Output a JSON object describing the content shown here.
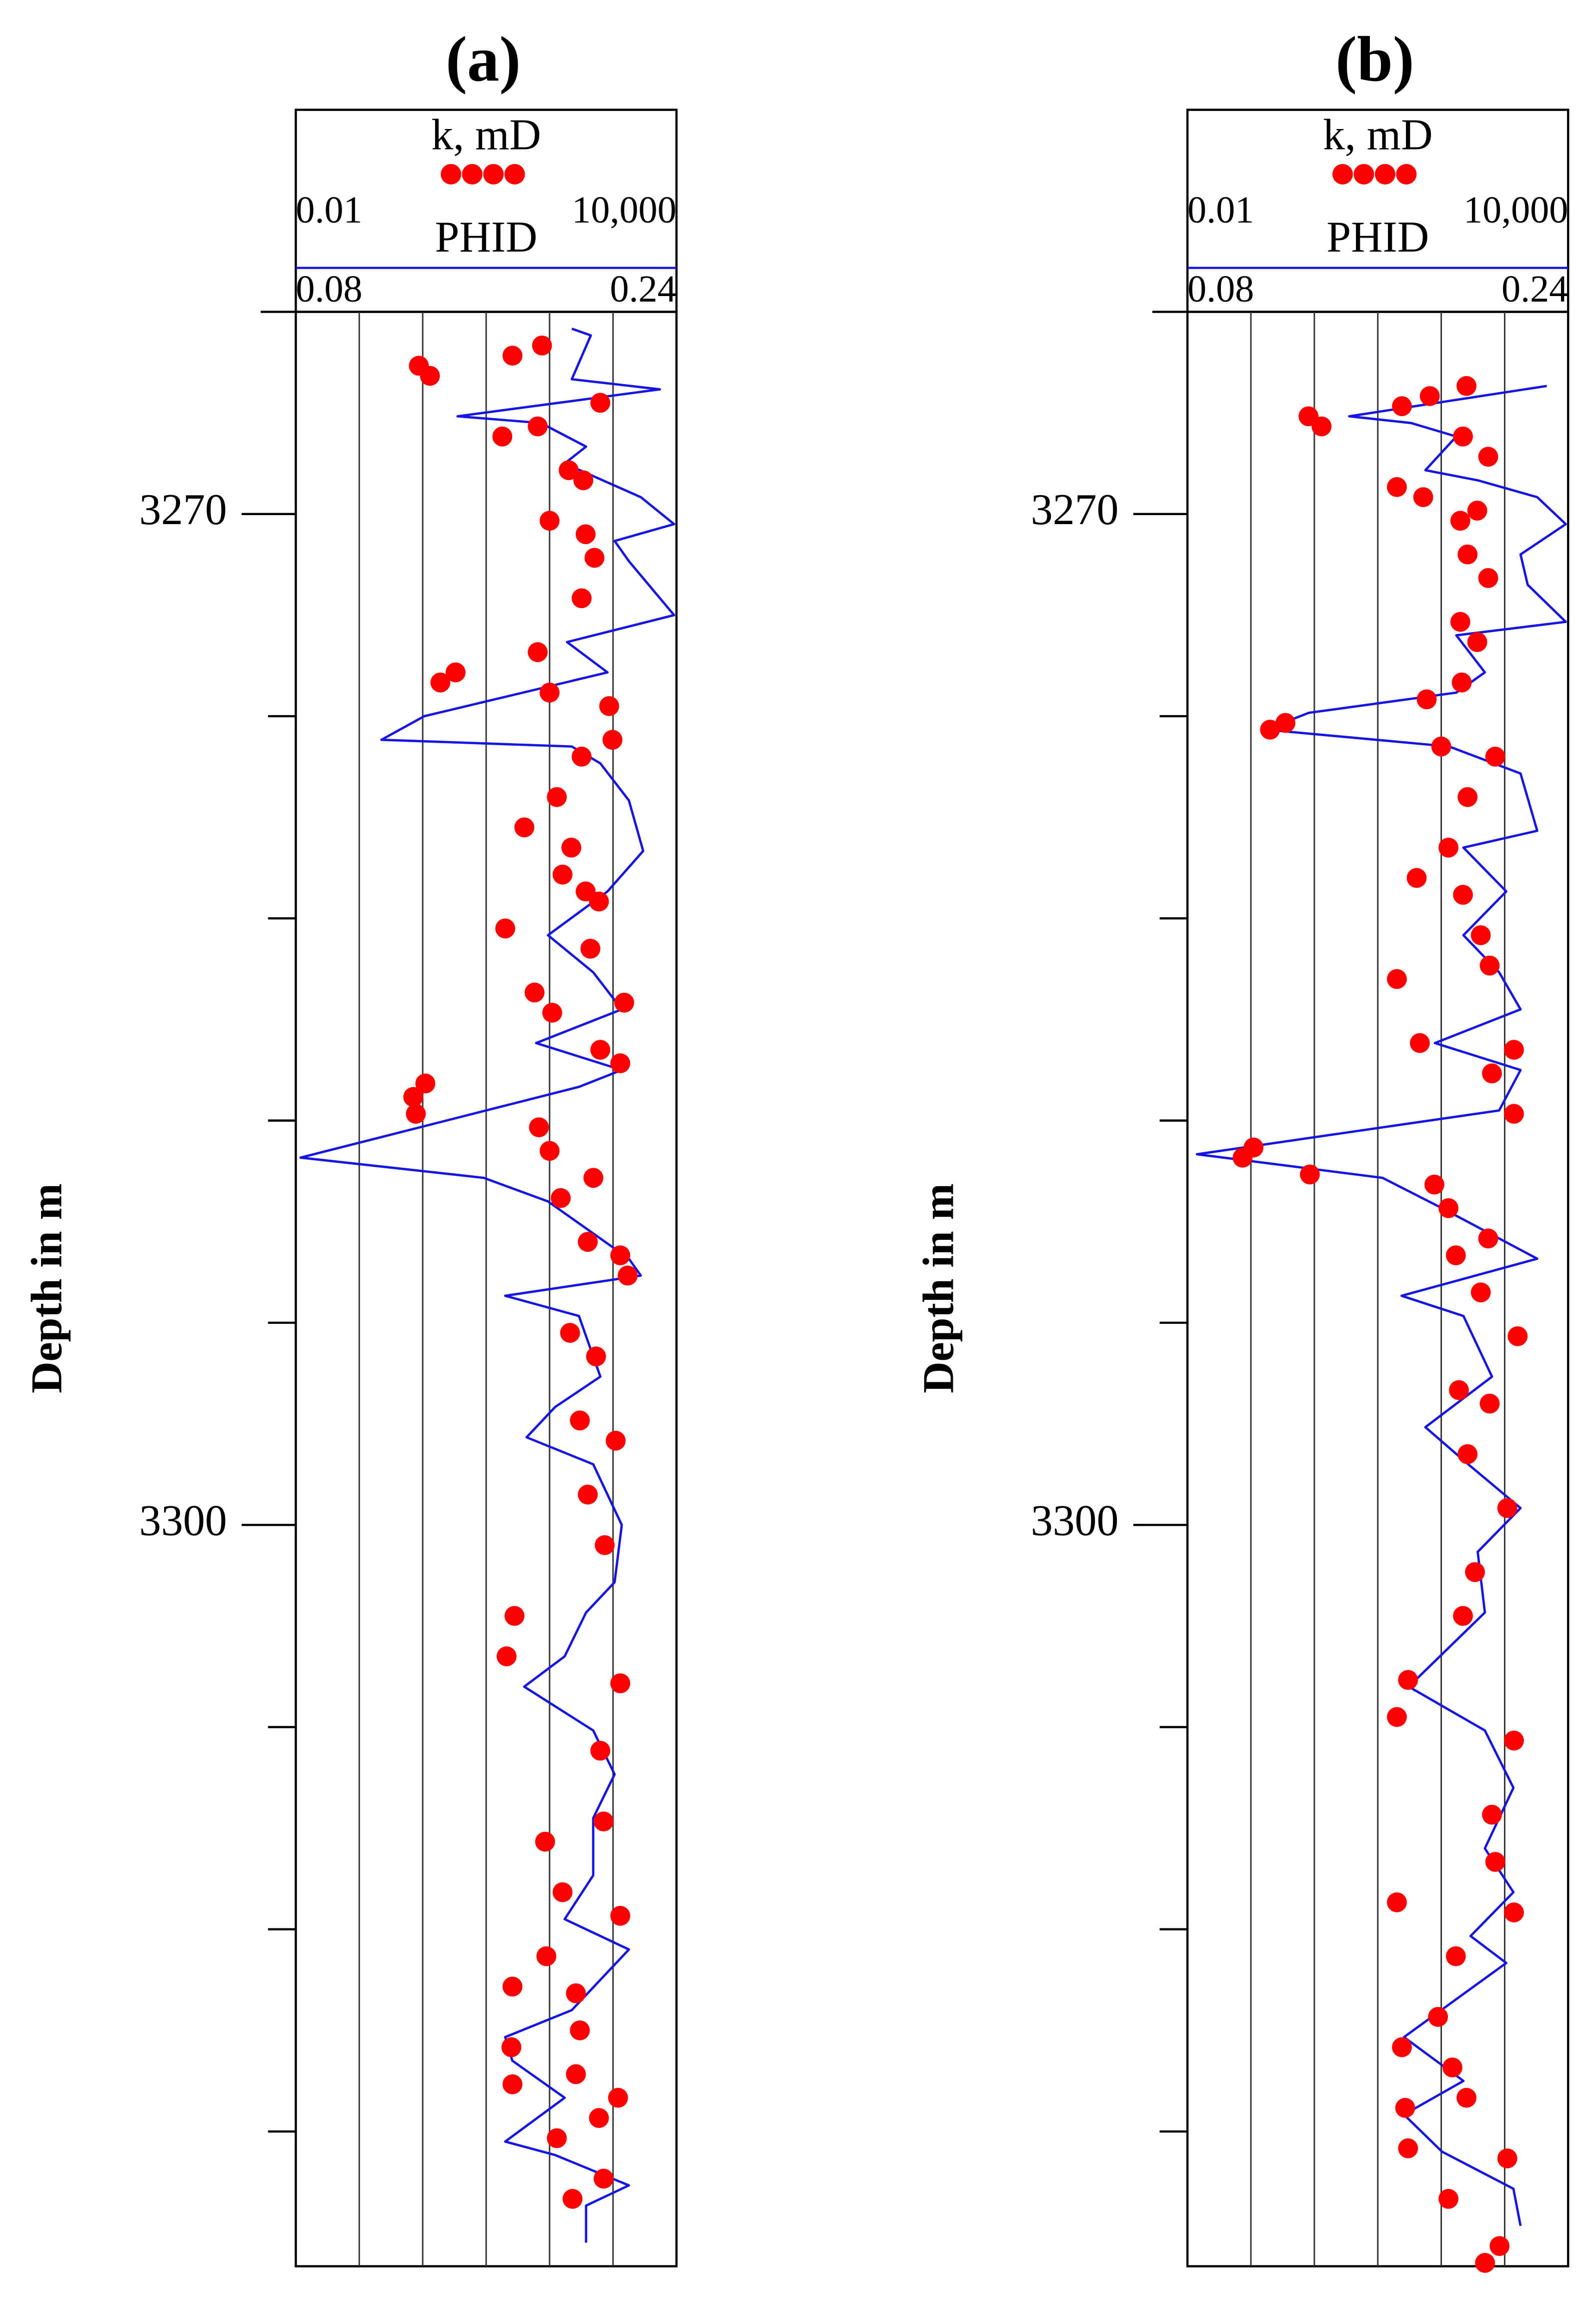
{
  "charts": [
    {
      "type": "well_log",
      "title": "(a)",
      "ylabel": "Depth in m",
      "ylim": [
        3264,
        3322
      ],
      "yticks": [
        3270,
        3300
      ],
      "minor_yticks": [
        3264,
        3276,
        3282,
        3288,
        3294,
        3306,
        3312,
        3318
      ],
      "grid": true,
      "series": [
        {
          "name": "k, mD",
          "kind": "scatter",
          "color": "#ff0000",
          "xscale": "log",
          "xlim": [
            0.01,
            10000
          ],
          "xticks": [
            0.01,
            {
              "value": 10000,
              "label": "10,000"
            }
          ],
          "gridlines": [
            0.1,
            1,
            10,
            100,
            1000
          ],
          "depth": [
            3265.6,
            3265.9,
            3265.3,
            3265.0,
            3266.7,
            3267.7,
            3267.4,
            3268.7,
            3269.0,
            3270.2,
            3270.6,
            3271.3,
            3272.5,
            3274.1,
            3274.7,
            3275.0,
            3275.3,
            3275.7,
            3276.7,
            3277.2,
            3278.4,
            3279.3,
            3279.9,
            3281.2,
            3280.7,
            3282.3,
            3281.5,
            3282.9,
            3284.2,
            3284.8,
            3284.5,
            3285.9,
            3286.3,
            3286.9,
            3287.3,
            3287.8,
            3288.2,
            3288.9,
            3289.7,
            3290.3,
            3291.6,
            3292.0,
            3292.6,
            3294.3,
            3295.0,
            3296.9,
            3297.5,
            3299.1,
            3300.6,
            3302.7,
            3303.9,
            3304.7,
            3306.7,
            3308.8,
            3309.4,
            3310.9,
            3311.6,
            3312.8,
            3313.7,
            3313.9,
            3315.5,
            3315.0,
            3316.3,
            3317.0,
            3316.6,
            3318.2,
            3317.6,
            3320.0,
            3319.4
          ],
          "values": [
            0.87,
            1.3,
            26,
            76,
            630,
            18,
            65,
            200,
            340,
            100,
            370,
            510,
            320,
            65,
            3.3,
            1.9,
            100,
            870,
            980,
            320,
            130,
            40,
            220,
            370,
            160,
            20,
            600,
            440,
            58,
            110,
            1500,
            630,
            1300,
            1.1,
            0.71,
            0.78,
            68,
            100,
            490,
            150,
            400,
            1300,
            1700,
            210,
            540,
            300,
            1100,
            400,
            740,
            28,
            21,
            1300,
            630,
            710,
            85,
            160,
            1300,
            89,
            26,
            260,
            25,
            300,
            260,
            1200,
            26,
            130,
            600,
            230,
            710
          ]
        },
        {
          "name": "PHID",
          "kind": "line",
          "color": "#1414e6",
          "xscale": "linear",
          "xlim": [
            0.08,
            0.24
          ],
          "xticks": [
            0.08,
            0.24
          ],
          "depth": [
            3264.5,
            3264.7,
            3266.0,
            3266.3,
            3267.1,
            3267.3,
            3268.0,
            3268.5,
            3269.5,
            3270.3,
            3270.8,
            3271.4,
            3273.0,
            3273.8,
            3274.7,
            3276.0,
            3276.7,
            3276.9,
            3277.4,
            3278.5,
            3280.0,
            3281.2,
            3282.5,
            3283.6,
            3284.7,
            3285.7,
            3286.5,
            3287.0,
            3289.1,
            3289.7,
            3290.4,
            3292.1,
            3292.6,
            3293.2,
            3293.8,
            3295.6,
            3296.5,
            3297.4,
            3298.2,
            3300.0,
            3301.7,
            3302.6,
            3303.9,
            3304.8,
            3306.1,
            3307.4,
            3308.7,
            3310.4,
            3311.7,
            3312.6,
            3314.4,
            3315.2,
            3315.9,
            3317.0,
            3318.3,
            3318.7,
            3319.6,
            3320.2,
            3321.3
          ],
          "values": [
            0.196,
            0.204,
            0.196,
            0.233,
            0.148,
            0.183,
            0.202,
            0.193,
            0.225,
            0.239,
            0.214,
            0.22,
            0.239,
            0.194,
            0.211,
            0.134,
            0.116,
            0.196,
            0.208,
            0.22,
            0.226,
            0.211,
            0.186,
            0.205,
            0.217,
            0.181,
            0.217,
            0.199,
            0.082,
            0.159,
            0.186,
            0.22,
            0.225,
            0.168,
            0.199,
            0.208,
            0.189,
            0.177,
            0.205,
            0.217,
            0.214,
            0.202,
            0.193,
            0.176,
            0.205,
            0.214,
            0.205,
            0.205,
            0.193,
            0.22,
            0.196,
            0.168,
            0.171,
            0.193,
            0.168,
            0.189,
            0.22,
            0.202,
            0.202
          ]
        }
      ]
    },
    {
      "type": "well_log",
      "title": "(b)",
      "ylabel": "Depth in m",
      "ylim": [
        3264,
        3322
      ],
      "yticks": [
        3270,
        3300
      ],
      "minor_yticks": [
        3264,
        3276,
        3282,
        3288,
        3294,
        3306,
        3312,
        3318
      ],
      "grid": true,
      "series": [
        {
          "name": "k, mD",
          "kind": "scatter",
          "color": "#ff0000",
          "xscale": "log",
          "xlim": [
            0.01,
            10000
          ],
          "xticks": [
            0.01,
            {
              "value": 10000,
              "label": "10,000"
            }
          ],
          "gridlines": [
            0.1,
            1,
            10,
            100,
            1000
          ],
          "depth": [
            3267.1,
            3267.4,
            3266.8,
            3266.5,
            3266.2,
            3267.7,
            3268.3,
            3269.2,
            3269.5,
            3270.2,
            3269.9,
            3271.2,
            3271.9,
            3273.2,
            3273.8,
            3275.0,
            3275.5,
            3276.2,
            3276.4,
            3276.9,
            3277.2,
            3278.4,
            3279.9,
            3280.8,
            3281.3,
            3282.5,
            3283.8,
            3283.4,
            3285.7,
            3285.9,
            3286.6,
            3287.8,
            3288.8,
            3289.1,
            3289.6,
            3289.9,
            3290.6,
            3291.5,
            3292.0,
            3293.1,
            3294.4,
            3296.0,
            3296.4,
            3297.9,
            3299.5,
            3301.4,
            3302.7,
            3304.6,
            3305.7,
            3306.4,
            3308.6,
            3310.0,
            3311.2,
            3311.5,
            3312.8,
            3314.6,
            3315.5,
            3316.1,
            3317.3,
            3317.0,
            3318.5,
            3320.0,
            3318.8,
            3321.9,
            3321.4
          ],
          "values": [
            0.81,
            1.3,
            24,
            66,
            250,
            220,
            550,
            20,
            52,
            200,
            370,
            260,
            550,
            200,
            370,
            210,
            59,
            0.35,
            0.2,
            100,
            710,
            260,
            130,
            41,
            220,
            420,
            20,
            580,
            46,
            1400,
            630,
            1400,
            0.11,
            0.074,
            0.85,
            78,
            130,
            550,
            170,
            420,
            1600,
            190,
            580,
            260,
            1100,
            340,
            220,
            30,
            20,
            1400,
            630,
            710,
            20,
            1400,
            170,
            89,
            24,
            150,
            27,
            250,
            30,
            130,
            1100,
            490,
            830
          ]
        },
        {
          "name": "PHID",
          "kind": "line",
          "color": "#1414e6",
          "xscale": "linear",
          "xlim": [
            0.08,
            0.24
          ],
          "xticks": [
            0.08,
            0.24
          ],
          "depth": [
            3266.2,
            3267.1,
            3267.3,
            3267.7,
            3268.7,
            3269.0,
            3269.5,
            3270.3,
            3271.2,
            3272.1,
            3273.2,
            3273.6,
            3274.7,
            3275.3,
            3275.9,
            3276.4,
            3276.9,
            3277.7,
            3279.4,
            3279.9,
            3281.2,
            3282.5,
            3283.6,
            3284.7,
            3285.7,
            3286.5,
            3287.7,
            3289.0,
            3289.7,
            3290.6,
            3292.1,
            3293.2,
            3293.8,
            3295.6,
            3297.1,
            3298.2,
            3299.5,
            3300.8,
            3302.6,
            3304.8,
            3306.1,
            3307.8,
            3309.6,
            3310.9,
            3312.2,
            3313.0,
            3315.2,
            3316.5,
            3317.5,
            3318.6,
            3319.7,
            3320.8
          ],
          "values": [
            0.231,
            0.148,
            0.174,
            0.193,
            0.18,
            0.202,
            0.227,
            0.239,
            0.22,
            0.223,
            0.239,
            0.193,
            0.205,
            0.193,
            0.131,
            0.113,
            0.19,
            0.22,
            0.227,
            0.196,
            0.214,
            0.196,
            0.211,
            0.22,
            0.184,
            0.22,
            0.211,
            0.084,
            0.162,
            0.187,
            0.227,
            0.17,
            0.196,
            0.208,
            0.18,
            0.198,
            0.22,
            0.202,
            0.205,
            0.173,
            0.205,
            0.217,
            0.205,
            0.217,
            0.199,
            0.214,
            0.171,
            0.196,
            0.171,
            0.187,
            0.217,
            0.22
          ]
        }
      ]
    }
  ]
}
